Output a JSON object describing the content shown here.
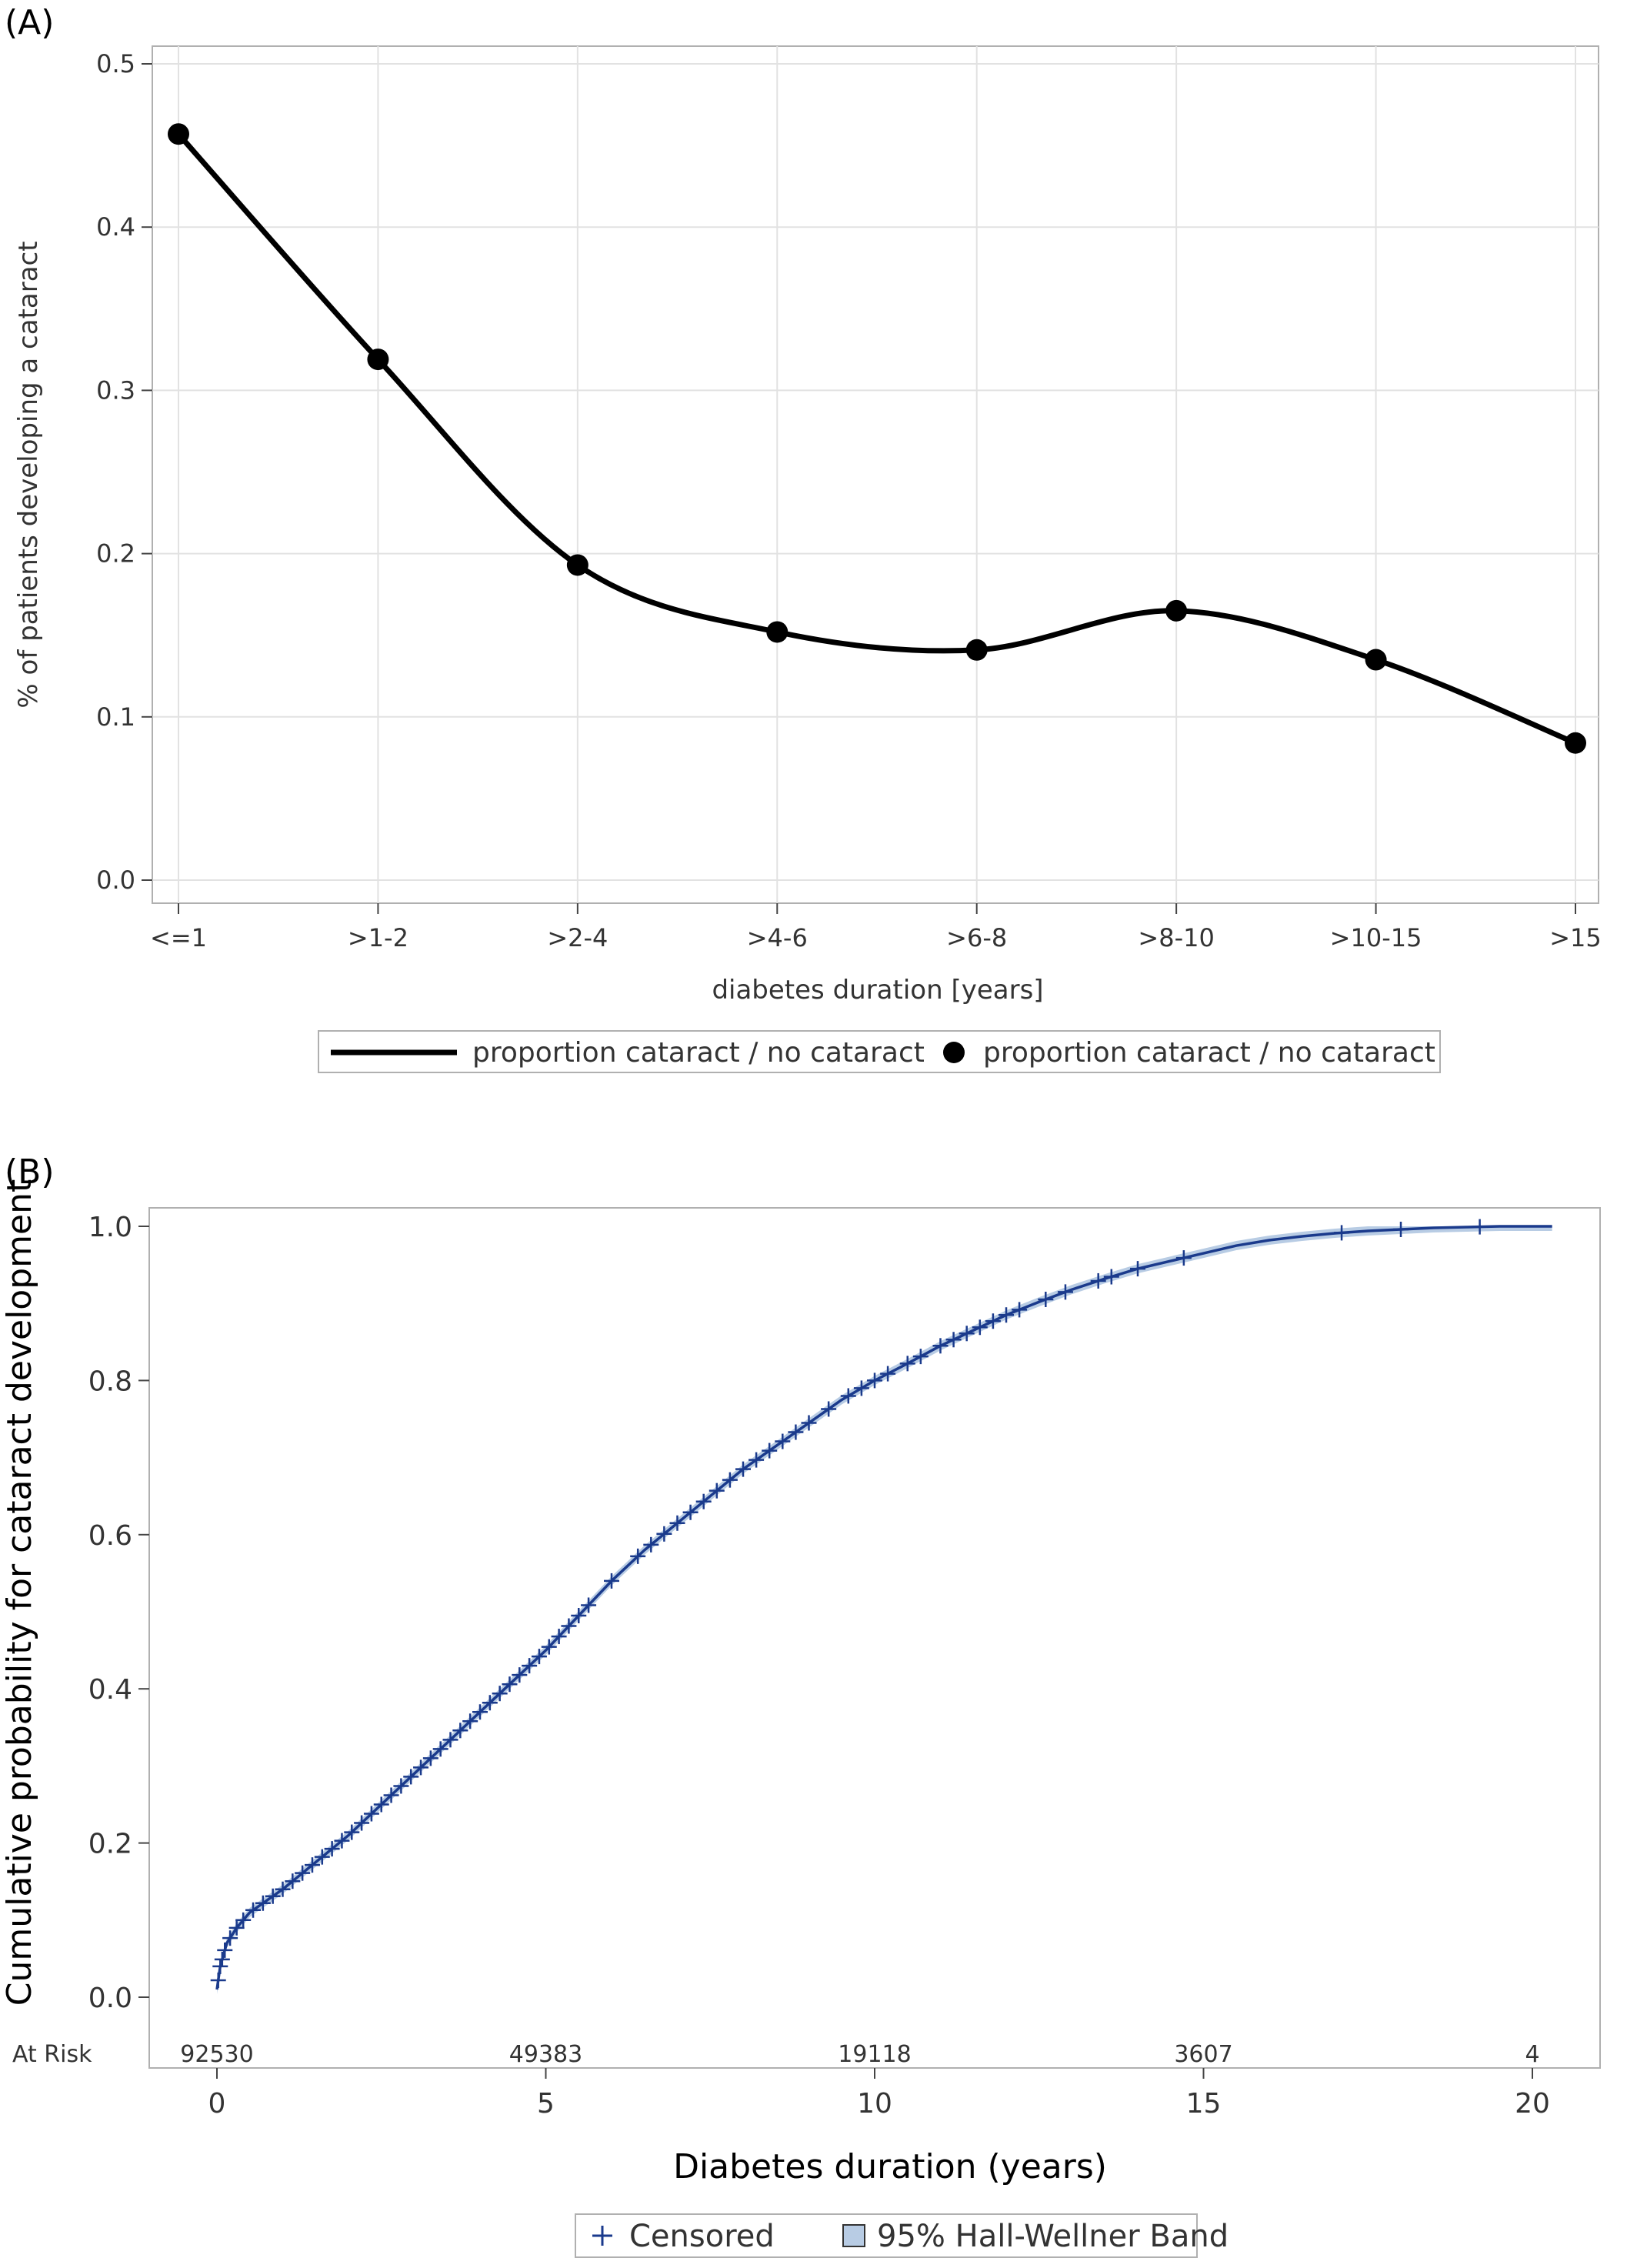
{
  "panel_a_label": "(A)",
  "panel_b_label": "(B)",
  "chart_data": [
    {
      "type": "line",
      "categories": [
        "<=1",
        ">1-2",
        ">2-4",
        ">4-6",
        ">6-8",
        ">8-10",
        ">10-15",
        ">15"
      ],
      "series": [
        {
          "name": "proportion cataract / no cataract",
          "values": [
            0.457,
            0.319,
            0.193,
            0.152,
            0.141,
            0.165,
            0.135,
            0.084
          ]
        }
      ],
      "xlabel": "diabetes duration [years]",
      "ylabel": "% of patients developing a cataract",
      "ylim": [
        0,
        0.5
      ],
      "yticks": [
        0.0,
        0.1,
        0.2,
        0.3,
        0.4,
        0.5
      ],
      "ytick_labels": [
        "0.0",
        "0.1",
        "0.2",
        "0.3",
        "0.4",
        "0.5"
      ],
      "grid": true,
      "legend": [
        {
          "label": "proportion cataract / no cataract",
          "kind": "line"
        },
        {
          "label": "proportion cataract / no cataract",
          "kind": "marker"
        }
      ],
      "legend_position": "bottom",
      "line_color": "#000000"
    },
    {
      "type": "line",
      "series": [
        {
          "name": "Cumulative probability",
          "x": [
            0,
            0.05,
            0.15,
            0.3,
            0.5,
            1,
            1.5,
            2,
            2.5,
            3,
            3.5,
            4,
            4.5,
            5,
            5.5,
            6,
            6.5,
            7,
            7.5,
            8,
            8.5,
            9,
            9.5,
            10,
            10.5,
            11,
            11.5,
            12,
            12.5,
            13,
            13.5,
            14,
            14.5,
            15,
            15.5,
            16,
            16.5,
            17,
            17.5,
            18,
            18.5,
            19,
            19.5,
            20,
            20.3
          ],
          "y": [
            0.01,
            0.04,
            0.07,
            0.09,
            0.11,
            0.14,
            0.175,
            0.21,
            0.25,
            0.29,
            0.33,
            0.37,
            0.41,
            0.45,
            0.495,
            0.54,
            0.58,
            0.615,
            0.65,
            0.685,
            0.715,
            0.745,
            0.775,
            0.8,
            0.822,
            0.845,
            0.865,
            0.885,
            0.902,
            0.918,
            0.932,
            0.945,
            0.955,
            0.965,
            0.975,
            0.982,
            0.987,
            0.991,
            0.994,
            0.996,
            0.998,
            0.999,
            1.0,
            1.0,
            1.0
          ]
        }
      ],
      "censored_x": [
        0.02,
        0.05,
        0.08,
        0.12,
        0.2,
        0.3,
        0.4,
        0.55,
        0.7,
        0.85,
        1.0,
        1.15,
        1.3,
        1.45,
        1.6,
        1.75,
        1.9,
        2.05,
        2.2,
        2.35,
        2.5,
        2.65,
        2.8,
        2.95,
        3.1,
        3.25,
        3.4,
        3.55,
        3.7,
        3.85,
        4.0,
        4.15,
        4.3,
        4.45,
        4.6,
        4.75,
        4.9,
        5.05,
        5.2,
        5.35,
        5.5,
        5.65,
        6.0,
        6.4,
        6.6,
        6.8,
        7.0,
        7.2,
        7.4,
        7.6,
        7.8,
        8.0,
        8.2,
        8.4,
        8.6,
        8.8,
        9.0,
        9.3,
        9.6,
        9.8,
        10.0,
        10.2,
        10.5,
        10.7,
        11.0,
        11.2,
        11.4,
        11.6,
        11.8,
        12.0,
        12.2,
        12.6,
        12.9,
        13.4,
        13.6,
        14.0,
        14.7,
        17.1,
        18.0,
        19.2
      ],
      "xlabel": "Diabetes  duration  (years)",
      "ylabel": "Cumulative probability for cataract development",
      "xlim": [
        -1,
        21.3
      ],
      "ylim": [
        -0.04,
        1.03
      ],
      "xticks": [
        0,
        5,
        10,
        15,
        20
      ],
      "xtick_labels": [
        "0",
        "5",
        "10",
        "15",
        "20"
      ],
      "yticks": [
        0.0,
        0.2,
        0.4,
        0.6,
        0.8,
        1.0
      ],
      "ytick_labels": [
        "0.0",
        "0.2",
        "0.4",
        "0.6",
        "0.8",
        "1.0"
      ],
      "grid": false,
      "at_risk_label": "At Risk",
      "at_risk": [
        {
          "x": 0,
          "n": "92530"
        },
        {
          "x": 5,
          "n": "49383"
        },
        {
          "x": 10,
          "n": "19118"
        },
        {
          "x": 15,
          "n": "3607"
        },
        {
          "x": 20,
          "n": "4"
        }
      ],
      "legend": [
        {
          "label": "Censored",
          "kind": "plus"
        },
        {
          "label": "95% Hall-Wellner Band",
          "kind": "box"
        }
      ],
      "legend_position": "bottom",
      "line_color": "#1a3a8c",
      "band_color": "#b8cce4"
    }
  ]
}
